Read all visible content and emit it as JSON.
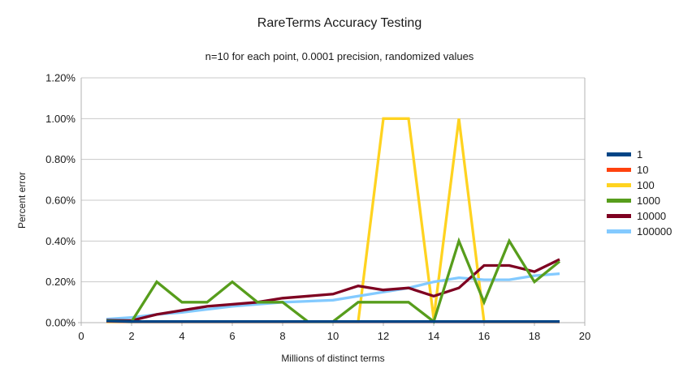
{
  "chart_data": {
    "type": "line",
    "title": "RareTerms Accuracy Testing",
    "subtitle": "n=10 for each point, 0.0001 precision, randomized values",
    "xlabel": "Millions of distinct terms",
    "ylabel": "Percent error",
    "xlim": [
      0,
      20
    ],
    "ylim_percent": [
      0,
      1.2
    ],
    "grid": "horizontal",
    "legend_position": "right",
    "x_ticks": [
      0,
      2,
      4,
      6,
      8,
      10,
      12,
      14,
      16,
      18,
      20
    ],
    "y_ticks": [
      {
        "label": "0.00%",
        "value": 0.0
      },
      {
        "label": "0.20%",
        "value": 0.2
      },
      {
        "label": "0.40%",
        "value": 0.4
      },
      {
        "label": "0.60%",
        "value": 0.6
      },
      {
        "label": "0.80%",
        "value": 0.8
      },
      {
        "label": "1.00%",
        "value": 1.0
      },
      {
        "label": "1.20%",
        "value": 1.2
      }
    ],
    "x": [
      1,
      2,
      3,
      4,
      5,
      6,
      7,
      8,
      9,
      10,
      11,
      12,
      13,
      14,
      15,
      16,
      17,
      18,
      19
    ],
    "series": [
      {
        "name": "1",
        "color": "#004586",
        "values_percent": [
          0.008,
          0.005,
          0.005,
          0.005,
          0.005,
          0.005,
          0.005,
          0.005,
          0.005,
          0.005,
          0.005,
          0.005,
          0.005,
          0.005,
          0.005,
          0.005,
          0.005,
          0.005,
          0.005
        ]
      },
      {
        "name": "10",
        "color": "#ff420e",
        "values_percent": [
          0.006,
          0.004,
          0.004,
          0.004,
          0.004,
          0.004,
          0.004,
          0.004,
          0.004,
          0.004,
          0.004,
          0.004,
          0.004,
          0.004,
          0.004,
          0.004,
          0.004,
          0.004,
          0.004
        ]
      },
      {
        "name": "100",
        "color": "#ffd320",
        "values_percent": [
          0.004,
          0.004,
          0.004,
          0.004,
          0.004,
          0.004,
          0.004,
          0.004,
          0.004,
          0.004,
          0.004,
          1.0,
          1.0,
          0.02,
          1.0,
          0.004,
          0.004,
          0.004,
          0.004
        ]
      },
      {
        "name": "1000",
        "color": "#579d1c",
        "values_percent": [
          0.01,
          0.005,
          0.2,
          0.1,
          0.1,
          0.2,
          0.1,
          0.1,
          0.005,
          0.005,
          0.1,
          0.1,
          0.1,
          0.005,
          0.4,
          0.1,
          0.4,
          0.2,
          0.3
        ]
      },
      {
        "name": "10000",
        "color": "#7e0021",
        "values_percent": [
          0.012,
          0.01,
          0.04,
          0.06,
          0.08,
          0.09,
          0.1,
          0.12,
          0.13,
          0.14,
          0.18,
          0.16,
          0.17,
          0.13,
          0.17,
          0.28,
          0.28,
          0.25,
          0.31
        ]
      },
      {
        "name": "100000",
        "color": "#83caff",
        "values_percent": [
          0.017,
          0.025,
          0.04,
          0.05,
          0.065,
          0.08,
          0.09,
          0.1,
          0.105,
          0.11,
          0.13,
          0.15,
          0.17,
          0.2,
          0.22,
          0.21,
          0.21,
          0.23,
          0.24
        ]
      }
    ],
    "draw_order": [
      "100",
      "10",
      "100000",
      "10000",
      "1000",
      "1"
    ],
    "style": {
      "grid_color": "#c9c9c9",
      "axis_color": "#b3b3b3",
      "text_color": "#1a1a1a",
      "background": "#ffffff",
      "line_width": 3.3
    }
  }
}
